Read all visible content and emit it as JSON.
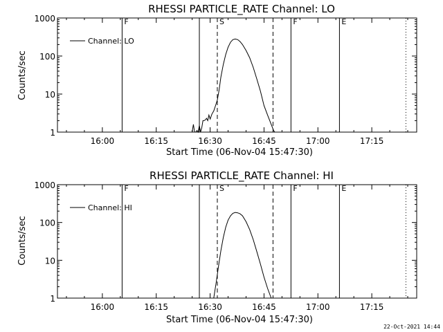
{
  "chart_data": [
    {
      "type": "line",
      "title": "RHESSI PARTICLE_RATE Channel: LO",
      "xlabel": "Start Time (06-Nov-04 15:47:30)",
      "ylabel": "Counts/sec",
      "y_scale": "log",
      "ylim": [
        1,
        1000
      ],
      "xlim": [
        "15:47:30",
        "17:27:30"
      ],
      "x_tick_labels": [
        "16:00",
        "16:15",
        "16:30",
        "16:45",
        "17:00",
        "17:15"
      ],
      "y_tick_labels": [
        "1",
        "10",
        "100",
        "1000"
      ],
      "grid": false,
      "legend_position": "top-left",
      "series": [
        {
          "name": "Channel: LO",
          "x": [
            "16:25:00",
            "16:25:20",
            "16:25:40",
            "16:26:00",
            "16:26:20",
            "16:26:40",
            "16:27:00",
            "16:27:20",
            "16:27:40",
            "16:28:00",
            "16:28:20",
            "16:28:40",
            "16:29:00",
            "16:29:20",
            "16:29:40",
            "16:30:00",
            "16:30:30",
            "16:31:00",
            "16:31:30",
            "16:32:00",
            "16:32:30",
            "16:33:00",
            "16:33:40",
            "16:34:20",
            "16:35:00",
            "16:35:40",
            "16:36:20",
            "16:37:00",
            "16:37:40",
            "16:38:20",
            "16:39:00",
            "16:40:00",
            "16:41:00",
            "16:42:00",
            "16:43:00",
            "16:44:00",
            "16:45:00",
            "16:46:00",
            "16:47:00",
            "16:47:40",
            "16:48:00"
          ],
          "values": [
            1,
            1.6,
            1,
            1,
            1.1,
            1,
            1.5,
            1,
            1.3,
            2,
            2,
            2.1,
            2.3,
            2,
            2.8,
            2.2,
            3,
            3.6,
            5,
            7,
            13,
            28,
            60,
            110,
            170,
            230,
            270,
            280,
            270,
            240,
            200,
            140,
            90,
            50,
            25,
            12,
            5,
            2.8,
            1.6,
            1.1,
            1
          ]
        }
      ],
      "markers": [
        {
          "label": "F",
          "time": "16:05:30",
          "style": "solid"
        },
        {
          "label": "",
          "time": "16:27:00",
          "style": "solid"
        },
        {
          "label": "S",
          "time": "16:32:00",
          "style": "dashed"
        },
        {
          "label": "",
          "time": "16:47:30",
          "style": "dashed"
        },
        {
          "label": "F",
          "time": "16:52:30",
          "style": "solid"
        },
        {
          "label": "E",
          "time": "17:06:00",
          "style": "solid"
        },
        {
          "label": "",
          "time": "17:24:30",
          "style": "dotted"
        }
      ]
    },
    {
      "type": "line",
      "title": "RHESSI PARTICLE_RATE Channel: HI",
      "xlabel": "Start Time (06-Nov-04 15:47:30)",
      "ylabel": "Counts/sec",
      "y_scale": "log",
      "ylim": [
        1,
        1000
      ],
      "xlim": [
        "15:47:30",
        "17:27:30"
      ],
      "x_tick_labels": [
        "16:00",
        "16:15",
        "16:30",
        "16:45",
        "17:00",
        "17:15"
      ],
      "y_tick_labels": [
        "1",
        "10",
        "100",
        "1000"
      ],
      "grid": false,
      "legend_position": "top-left",
      "series": [
        {
          "name": "Channel: HI",
          "x": [
            "16:31:00",
            "16:31:40",
            "16:32:20",
            "16:33:00",
            "16:33:40",
            "16:34:20",
            "16:35:00",
            "16:35:40",
            "16:36:20",
            "16:37:00",
            "16:37:40",
            "16:38:20",
            "16:39:00",
            "16:40:00",
            "16:41:00",
            "16:42:00",
            "16:43:00",
            "16:44:00",
            "16:45:00",
            "16:46:00",
            "16:47:00"
          ],
          "values": [
            1,
            2.5,
            7,
            18,
            40,
            75,
            115,
            150,
            175,
            185,
            180,
            170,
            150,
            105,
            65,
            35,
            17,
            8,
            3.6,
            1.8,
            1
          ]
        }
      ],
      "markers": [
        {
          "label": "F",
          "time": "16:05:30",
          "style": "solid"
        },
        {
          "label": "",
          "time": "16:27:00",
          "style": "solid"
        },
        {
          "label": "S",
          "time": "16:32:00",
          "style": "dashed"
        },
        {
          "label": "",
          "time": "16:47:30",
          "style": "dashed"
        },
        {
          "label": "F",
          "time": "16:52:30",
          "style": "solid"
        },
        {
          "label": "E",
          "time": "17:06:00",
          "style": "solid"
        },
        {
          "label": "",
          "time": "17:24:30",
          "style": "dotted"
        }
      ]
    }
  ],
  "footer": {
    "timestamp": "22-Oct-2021 14:44"
  }
}
